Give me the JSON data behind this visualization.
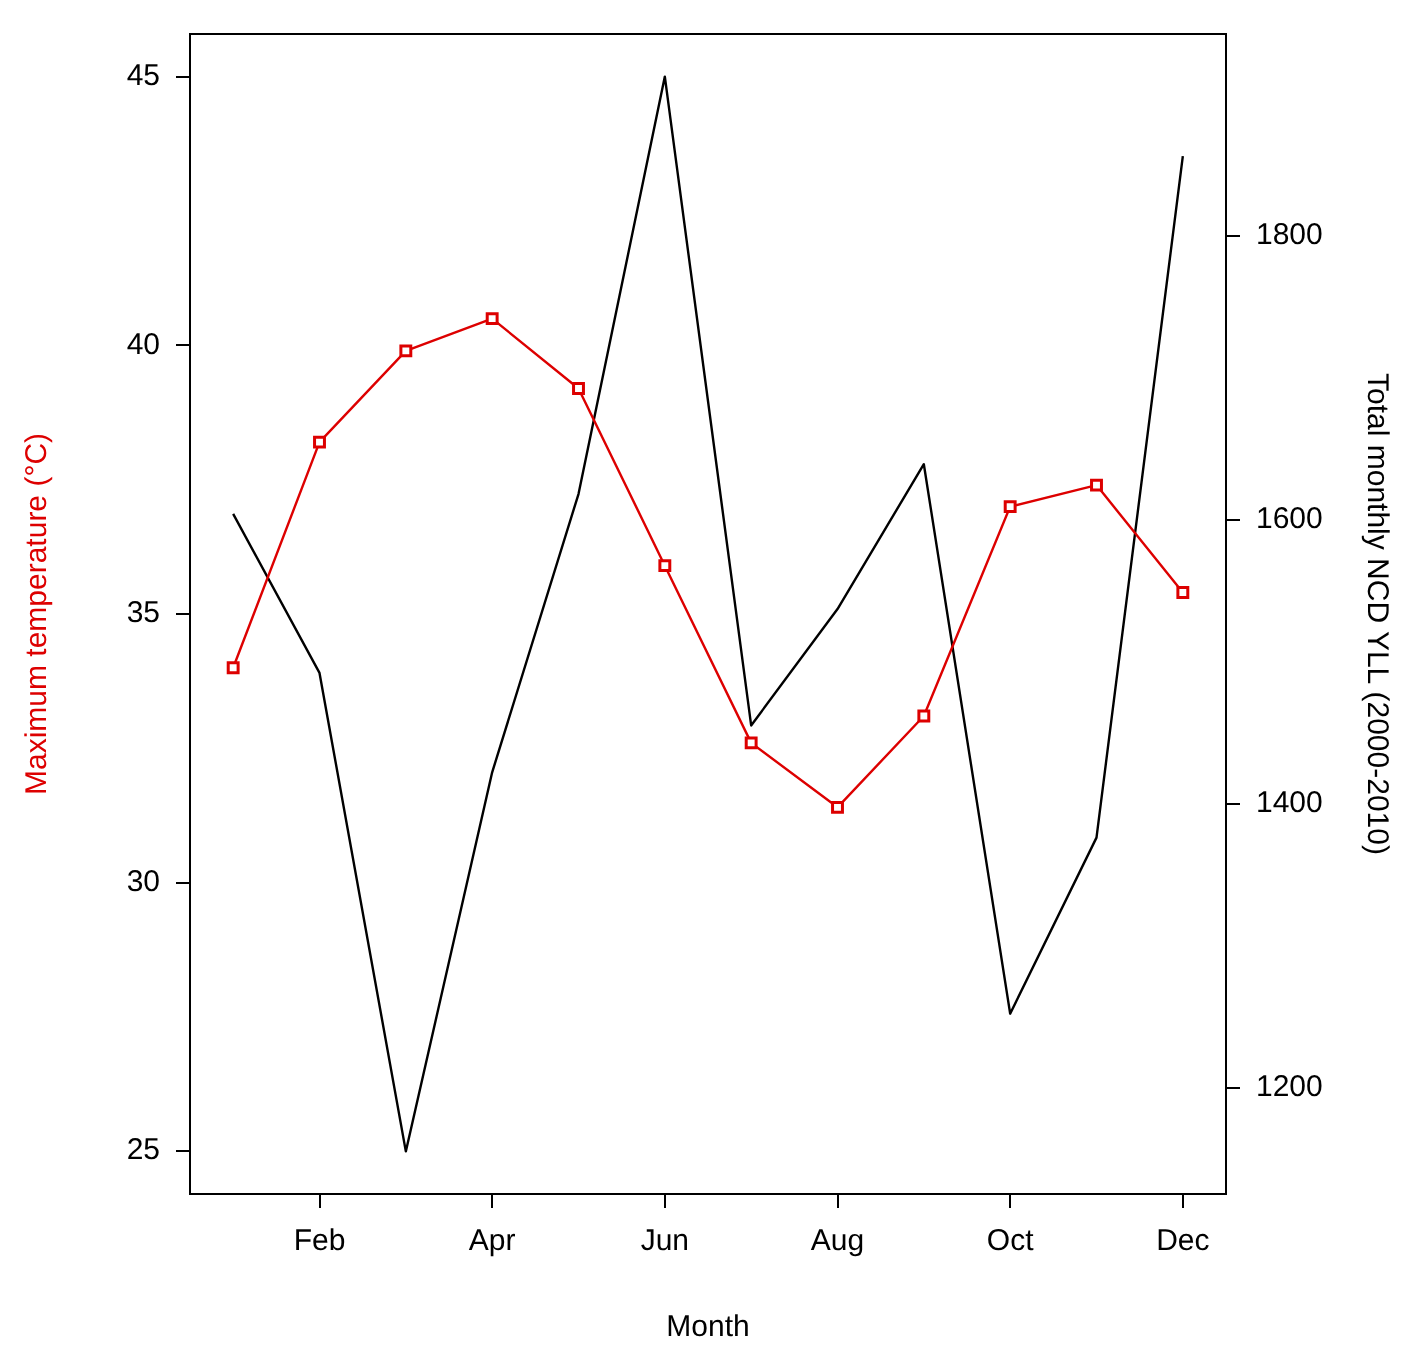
{
  "chart_data": {
    "type": "line",
    "xlabel": "Month",
    "ylabel": "Maximum temperature (°C)",
    "y2label": "Total monthly NCD YLL (2000-2010)",
    "categories": [
      null,
      "Feb",
      null,
      "Apr",
      null,
      "Jun",
      null,
      "Aug",
      null,
      "Oct",
      null,
      "Dec"
    ],
    "ylim": [
      24.2,
      45.8
    ],
    "yticks": [
      25,
      30,
      35,
      40,
      45
    ],
    "y2lim": [
      1125,
      1942
    ],
    "y2ticks": [
      1200,
      1400,
      1600,
      1800
    ],
    "grid": false,
    "legend": false,
    "line_style": "solid",
    "series": [
      {
        "color": "#dd0000",
        "marker": "square",
        "values": [
          34.0,
          38.2,
          39.9,
          40.5,
          39.2,
          35.9,
          32.6,
          31.4,
          33.1,
          37.0,
          37.4,
          35.4
        ]
      },
      {
        "color": "#000000",
        "marker": "none",
        "axis": "y2",
        "values": [
          1604,
          1492,
          1155,
          1422,
          1618,
          1912,
          1455,
          1537,
          1639,
          1252,
          1376,
          1856
        ]
      }
    ]
  }
}
